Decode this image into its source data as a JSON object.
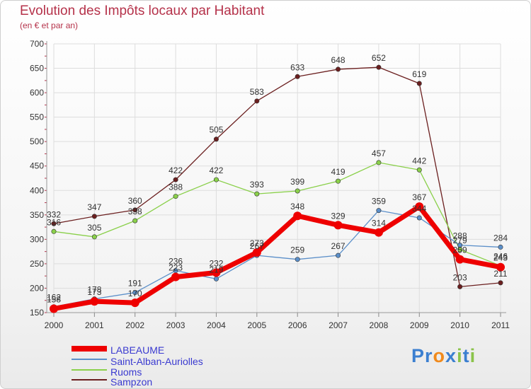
{
  "header": {
    "title": "Evolution des Impôts locaux par Habitant",
    "subtitle": "(en € et par an)"
  },
  "logo": {
    "text": "Proxiti",
    "letters": [
      "P",
      "r",
      "o",
      "x",
      "i",
      "t",
      "i"
    ],
    "colors": [
      "#3b7fd0",
      "#3b7fd0",
      "#f08a1c",
      "#3b7fd0",
      "#8bc34a",
      "#3b7fd0",
      "#8bc34a"
    ]
  },
  "chart_data": {
    "type": "line",
    "title": "Evolution des Impôts locaux par Habitant",
    "ylabel": "(en € et par an)",
    "xlabel": "",
    "x": [
      "2000",
      "2001",
      "2002",
      "2003",
      "2004",
      "2005",
      "2006",
      "2007",
      "2008",
      "2009",
      "2010",
      "2011"
    ],
    "ylim": [
      150,
      700
    ],
    "yticks": [
      "150",
      "200",
      "250",
      "300",
      "350",
      "400",
      "450",
      "500",
      "550",
      "600",
      "650",
      "700"
    ],
    "grid": true,
    "legend_position": "bottom-left",
    "series": [
      {
        "name": "Sampzon",
        "color": "#6b1f1f",
        "values": [
          332,
          347,
          360,
          422,
          505,
          583,
          633,
          648,
          652,
          619,
          203,
          211
        ],
        "labels": [
          "332",
          "347",
          "360",
          "422",
          "505",
          "583",
          "633",
          "648",
          "652",
          "619",
          "203",
          "211"
        ]
      },
      {
        "name": "Ruoms",
        "color": "#8ad04a",
        "values": [
          316,
          305,
          338,
          388,
          422,
          393,
          399,
          419,
          457,
          442,
          279,
          246
        ],
        "labels": [
          "316",
          "305",
          "338",
          "388",
          "422",
          "393",
          "399",
          "419",
          "457",
          "442",
          "279",
          "246"
        ]
      },
      {
        "name": "Saint-Alban-Auriolles",
        "color": "#5b8fc9",
        "values": [
          162,
          178,
          191,
          236,
          219,
          267,
          259,
          267,
          359,
          344,
          288,
          284
        ],
        "labels": [
          "162",
          "178",
          "191",
          "236",
          "219",
          "267",
          "259",
          "267",
          "359",
          "344",
          "288",
          "284"
        ]
      },
      {
        "name": "LABEAUME",
        "color": "#ee0000",
        "values": [
          158,
          173,
          170,
          223,
          232,
          273,
          348,
          329,
          314,
          367,
          259,
          243
        ],
        "labels": [
          "158",
          "173",
          "170",
          "223",
          "232",
          "273",
          "348",
          "329",
          "314",
          "367",
          "259",
          "243"
        ]
      }
    ]
  }
}
